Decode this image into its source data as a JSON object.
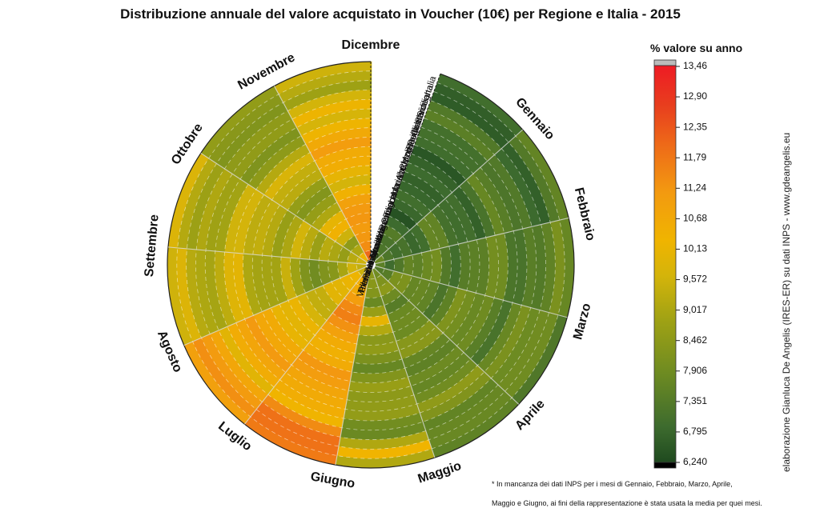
{
  "chart_data": {
    "type": "heatmap",
    "title": "Distribuzione annuale del valore acquistato in Voucher (10€) per Regione e Italia - 2015",
    "months": [
      "Gennaio",
      "Febbraio",
      "Marzo",
      "Aprile",
      "Maggio",
      "Giugno",
      "Luglio",
      "Agosto",
      "Settembre",
      "Ottobre",
      "Novembre",
      "Dicembre"
    ],
    "regions": [
      "Piemonte",
      "Valle d'Aosta",
      "Liguria",
      "Lombardia",
      "Trentino-Alto Adige",
      "Veneto",
      "Friuli-Venezia Giulia",
      "Emilia-Romagna",
      "Toscana",
      "Umbria",
      "Marche",
      "Lazio",
      "Abruzzo",
      "Molise",
      "Campania",
      "Puglia",
      "Basilicata",
      "Calabria",
      "Sicilia",
      "Sardegna",
      "Italia"
    ],
    "colorbar": {
      "title": "% valore su anno",
      "ticks": [
        "13,46",
        "12,90",
        "12,35",
        "11,79",
        "11,24",
        "10,68",
        "10,13",
        "9,572",
        "9,017",
        "8,462",
        "7,906",
        "7,351",
        "6,795",
        "6,240"
      ],
      "min": 6.24,
      "max": 13.46,
      "colors": [
        "#000000",
        "#1f4a1f",
        "#3d6b2e",
        "#6c8a22",
        "#a0a214",
        "#d4b40a",
        "#f0b400",
        "#f39a10",
        "#ee6a18",
        "#e83e1e",
        "#ee1b24",
        "#bbbbbb"
      ]
    },
    "month_base_values": [
      7.0,
      7.2,
      7.5,
      7.7,
      7.9,
      8.3,
      10.6,
      9.8,
      9.0,
      9.2,
      8.7,
      9.6
    ],
    "hotspots": [
      {
        "month": "Luglio",
        "region": "Veneto",
        "value": 11.6
      },
      {
        "month": "Luglio",
        "region": "Sardegna",
        "value": 12.3
      },
      {
        "month": "Agosto",
        "region": "Sardegna",
        "value": 11.3
      },
      {
        "month": "Agosto",
        "region": "Molise",
        "value": 11.1
      },
      {
        "month": "Dicembre",
        "region": "Abruzzo",
        "value": 11.0
      },
      {
        "month": "Dicembre",
        "region": "Trentino-Alto Adige",
        "value": 11.3
      },
      {
        "month": "Dicembre",
        "region": "Veneto",
        "value": 11.1
      },
      {
        "month": "Dicembre",
        "region": "Piemonte",
        "value": 12.0
      },
      {
        "month": "Novembre",
        "region": "Sicilia",
        "value": 8.2
      },
      {
        "month": "Settembre",
        "region": "Veneto",
        "value": 7.9
      },
      {
        "month": "Gennaio",
        "region": "Umbria",
        "value": 6.7
      }
    ]
  },
  "credit": "elaborazione Gianluca De Angelis (IRES-ER) su dati INPS - www.gdeangelis.eu",
  "footnote": {
    "line1": "* In mancanza dei dati INPS per i mesi di Gennaio, Febbraio, Marzo, Aprile,",
    "line2": "Maggio e Giugno, ai fini della rappresentazione è stata usata la media per quei mesi."
  }
}
